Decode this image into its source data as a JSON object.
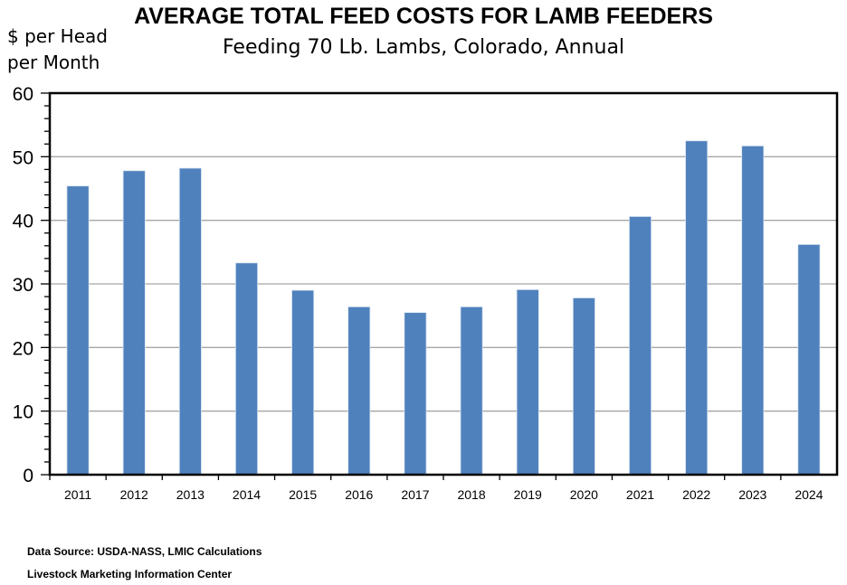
{
  "chart_data": {
    "type": "bar",
    "title": "AVERAGE TOTAL FEED COSTS FOR LAMB FEEDERS",
    "subtitle": "Feeding 70 Lb. Lambs, Colorado, Annual",
    "ylabel": "$ per Head per Month",
    "ylabel_lines": [
      "$ per Head",
      "per Month"
    ],
    "xlabel": "",
    "ylim": [
      0,
      60
    ],
    "yticks": [
      0,
      10,
      20,
      30,
      40,
      50,
      60
    ],
    "grid": true,
    "categories": [
      "2011",
      "2012",
      "2013",
      "2014",
      "2015",
      "2016",
      "2017",
      "2018",
      "2019",
      "2020",
      "2021",
      "2022",
      "2023",
      "2024"
    ],
    "values": [
      45.4,
      47.8,
      48.2,
      33.3,
      29.0,
      26.4,
      25.5,
      26.4,
      29.1,
      27.8,
      40.6,
      52.5,
      51.7,
      36.2
    ],
    "bar_color": "#4f81bd"
  },
  "footer": {
    "source": "Data Source:  USDA-NASS, LMIC Calculations",
    "org": "Livestock Marketing Information Center"
  }
}
